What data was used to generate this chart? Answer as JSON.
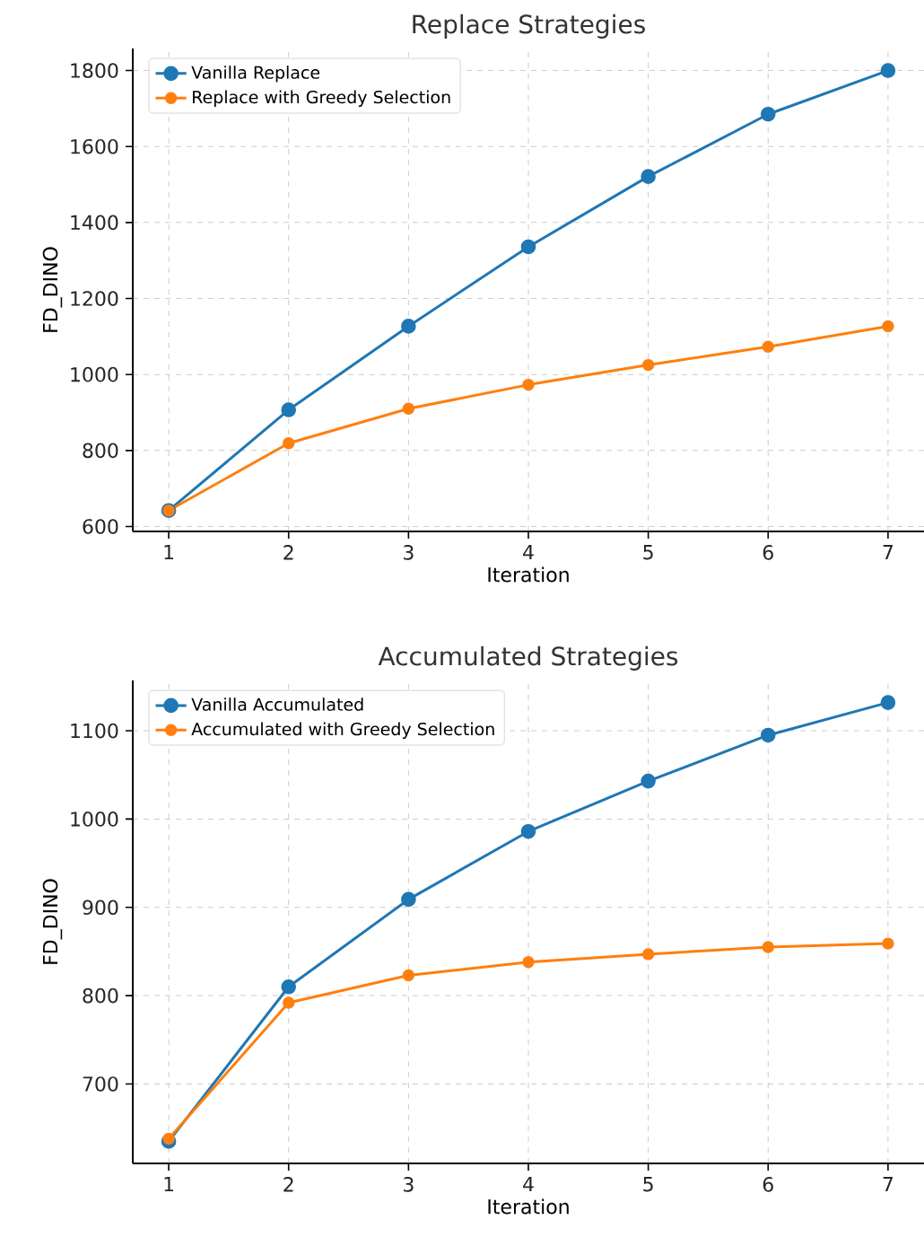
{
  "chart_data": [
    {
      "type": "line",
      "title": "Replace Strategies",
      "xlabel": "Iteration",
      "ylabel": "FD_DINO",
      "x": [
        1,
        2,
        3,
        4,
        5,
        6,
        7
      ],
      "series": [
        {
          "name": "Vanilla Replace",
          "color": "#1f77b4",
          "values": [
            642,
            907,
            1127,
            1336,
            1521,
            1685,
            1800
          ]
        },
        {
          "name": "Replace with Greedy Selection",
          "color": "#ff7f0e",
          "values": [
            642,
            819,
            910,
            973,
            1025,
            1073,
            1127
          ]
        }
      ],
      "xlim": [
        0.7,
        7.3
      ],
      "ylim": [
        587,
        1858
      ],
      "xticks": [
        1,
        2,
        3,
        4,
        5,
        6,
        7
      ],
      "yticks": [
        600,
        800,
        1000,
        1200,
        1400,
        1600,
        1800
      ],
      "grid": true,
      "legend": "top left",
      "marker": "circle",
      "line_style": "solid"
    },
    {
      "type": "line",
      "title": "Accumulated Strategies",
      "xlabel": "Iteration",
      "ylabel": "FD_DINO",
      "x": [
        1,
        2,
        3,
        4,
        5,
        6,
        7
      ],
      "series": [
        {
          "name": "Vanilla Accumulated",
          "color": "#1f77b4",
          "values": [
            635,
            810,
            909,
            986,
            1043,
            1095,
            1132
          ]
        },
        {
          "name": "Accumulated with Greedy Selection",
          "color": "#ff7f0e",
          "values": [
            638,
            792,
            823,
            838,
            847,
            855,
            859
          ]
        }
      ],
      "xlim": [
        0.7,
        7.3
      ],
      "ylim": [
        610,
        1157
      ],
      "xticks": [
        1,
        2,
        3,
        4,
        5,
        6,
        7
      ],
      "yticks": [
        700,
        800,
        900,
        1000,
        1100
      ],
      "grid": true,
      "legend": "top left",
      "marker": "circle",
      "line_style": "solid"
    }
  ]
}
